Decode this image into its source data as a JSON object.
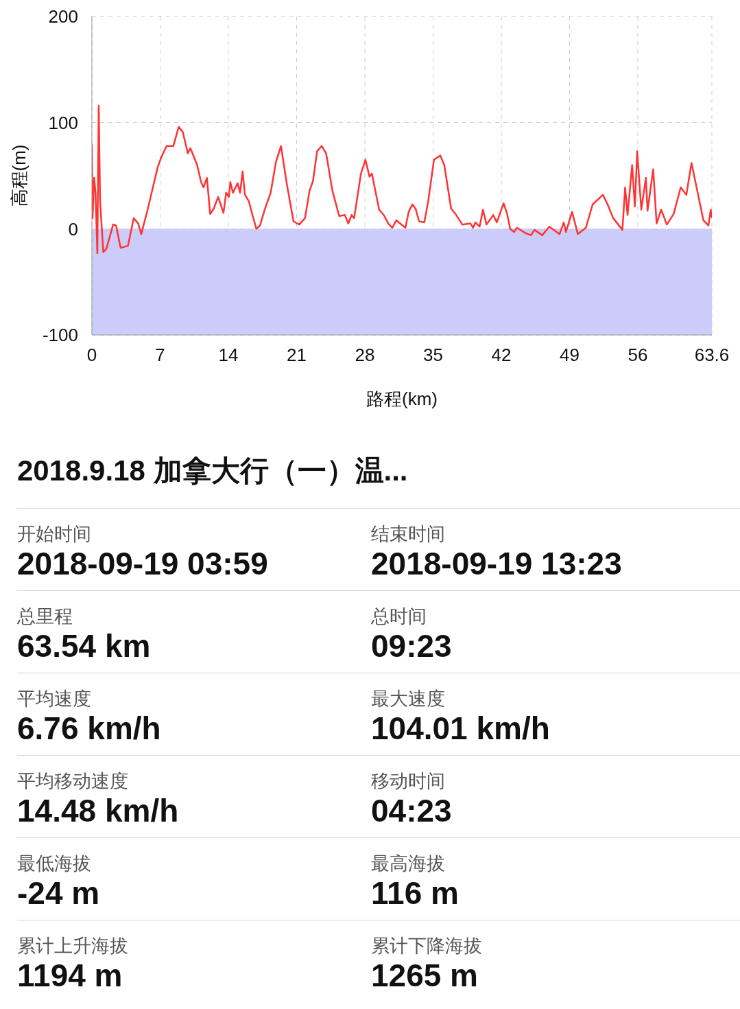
{
  "chart_data": [
    {
      "type": "line",
      "xlabel": "路程(km)",
      "ylabel": "高程(m)",
      "xlim": [
        0,
        63.6
      ],
      "xticks": [
        0,
        7,
        14,
        21,
        28,
        35,
        42,
        49,
        56,
        63.6
      ],
      "ylim": [
        -100,
        200
      ],
      "yticks": [
        -100,
        0,
        100,
        200
      ],
      "grid": true,
      "color": "#ff3333",
      "bands": [
        {
          "axis": "y",
          "from": -100,
          "to": 0,
          "color": "#ccccf8"
        }
      ],
      "x": [
        0,
        0.07,
        0.23,
        0.37,
        0.56,
        0.7,
        0.84,
        1.17,
        1.48,
        2.18,
        2.48,
        2.95,
        3.7,
        4.29,
        4.75,
        5.06,
        5.69,
        6.75,
        7.1,
        7.66,
        8.36,
        8.9,
        9.33,
        9.84,
        10.1,
        10.8,
        11.2,
        11.45,
        11.8,
        12.13,
        12.5,
        12.95,
        13.5,
        13.77,
        14.05,
        14.2,
        14.47,
        14.95,
        15.2,
        15.46,
        15.7,
        16.1,
        16.47,
        16.87,
        17.24,
        17.76,
        18.34,
        18.88,
        19.4,
        19.98,
        20.68,
        21.27,
        21.86,
        22.33,
        22.68,
        23.1,
        23.57,
        24.03,
        24.67,
        25.37,
        25.95,
        26.3,
        26.65,
        26.9,
        27.6,
        28.06,
        28.48,
        28.72,
        29.47,
        29.94,
        30.4,
        30.82,
        31.22,
        32.16,
        32.5,
        32.87,
        33.2,
        33.57,
        34.1,
        34.5,
        35.09,
        35.74,
        36.15,
        36.85,
        37.3,
        38.0,
        38.84,
        39.1,
        39.35,
        39.77,
        40.12,
        40.48,
        41.18,
        41.53,
        42.23,
        42.6,
        42.9,
        43.3,
        43.6,
        44.46,
        45.05,
        45.4,
        46.2,
        46.92,
        47.97,
        48.4,
        48.63,
        49.26,
        49.85,
        50.67,
        51.37,
        52.42,
        52.9,
        53.48,
        54.42,
        54.7,
        54.95,
        55.42,
        55.7,
        55.94,
        56.36,
        56.83,
        57.0,
        57.58,
        57.93,
        58.4,
        58.98,
        59.68,
        60.4,
        60.98,
        61.51,
        62.73,
        63.25,
        63.48,
        63.6
      ],
      "values": [
        80,
        10,
        48,
        34,
        -23,
        116,
        26,
        -22,
        -19,
        4,
        3,
        -18,
        -16,
        10,
        5,
        -5,
        17,
        58,
        67,
        78,
        78,
        96,
        91,
        71,
        76,
        60,
        44,
        39,
        48,
        14,
        19,
        30,
        15,
        34,
        30,
        44,
        34,
        43,
        34,
        54,
        32,
        26,
        13,
        0,
        3,
        19,
        34,
        63,
        78,
        43,
        7,
        4,
        10,
        36,
        45,
        73,
        78,
        71,
        36,
        12,
        13,
        5,
        13,
        10,
        52,
        65,
        49,
        52,
        18,
        13,
        5,
        1,
        8,
        1,
        16,
        23,
        19,
        7,
        6,
        26,
        65,
        69,
        60,
        19,
        14,
        4,
        5,
        1,
        6,
        2,
        18,
        4,
        13,
        6,
        24,
        14,
        0,
        -3,
        1,
        -4,
        -6,
        -1,
        -6,
        2,
        -5,
        6,
        -3,
        16,
        -5,
        1,
        23,
        32,
        23,
        10,
        -1,
        39,
        13,
        60,
        21,
        73,
        18,
        48,
        17,
        56,
        5,
        18,
        4,
        14,
        39,
        32,
        62,
        8,
        3,
        18,
        10
      ]
    },
    {
      "type": "other",
      "title": "2018.9.18 加拿大行（一）温...",
      "annotations": [
        "开始时间",
        "2018-09-19 03:59",
        "结束时间",
        "2018-09-19 13:23",
        "总里程",
        "63.54 km",
        "总时间",
        "09:23",
        "平均速度",
        "6.76 km/h",
        "最大速度",
        "104.01 km/h",
        "平均移动速度",
        "14.48 km/h",
        "移动时间",
        "04:23",
        "最低海拔",
        "-24 m",
        "最高海拔",
        "116 m",
        "累计上升海拔",
        "1194 m",
        "累计下降海拔",
        "1265 m"
      ]
    }
  ]
}
